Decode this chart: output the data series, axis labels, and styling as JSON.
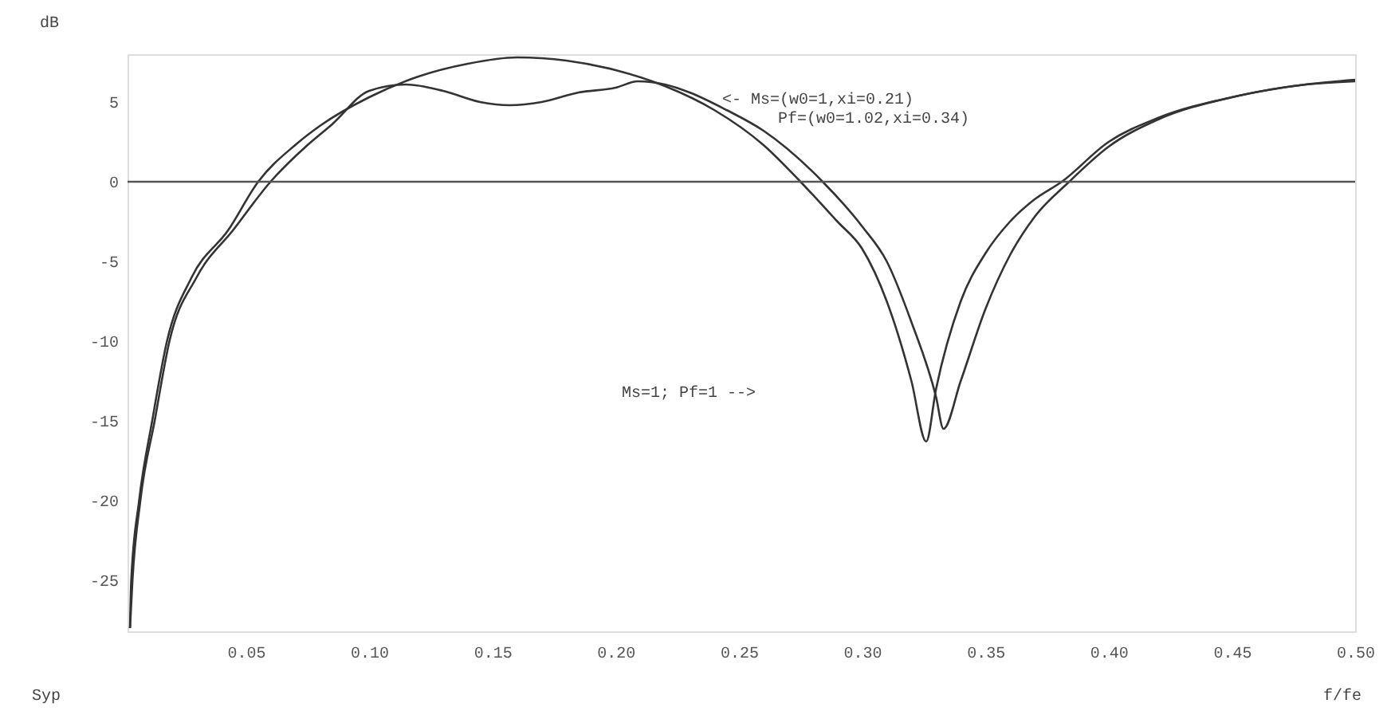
{
  "chart_data": {
    "type": "line",
    "xlabel": "f/fe",
    "ylabel": "dB",
    "xlim": [
      0.002,
      0.5
    ],
    "ylim": [
      -28.2,
      8
    ],
    "xticks": [
      0.05,
      {
        "value": 0.1,
        "label": "0.10"
      },
      0.15,
      {
        "value": 0.2,
        "label": "0.20"
      },
      0.25,
      {
        "value": 0.3,
        "label": "0.30"
      },
      0.35,
      {
        "value": 0.4,
        "label": "0.40"
      },
      0.45,
      {
        "value": 0.5,
        "label": "0.50"
      }
    ],
    "yticks": [
      5,
      0,
      -5,
      -10,
      -15,
      -20,
      -25
    ],
    "grid": false,
    "marker": "none",
    "line_style": "solid",
    "ref_lines": [
      {
        "axis": "y",
        "value": 0,
        "color": "#555555"
      }
    ],
    "annotations": [
      "<- Ms=(w0=1,xi=0.21)",
      "Pf=(w0=1.02,xi=0.34)",
      "Ms=1; Pf=1 -->",
      "Syp"
    ],
    "series": [
      {
        "color": "#333333",
        "x": [
          0.003,
          0.0035,
          0.0067,
          0.012,
          0.018,
          0.028,
          0.043,
          0.055,
          0.07,
          0.08,
          0.1,
          0.12,
          0.14,
          0.16,
          0.18,
          0.2,
          0.22,
          0.24,
          0.26,
          0.275,
          0.29,
          0.3,
          0.31,
          0.32,
          0.326,
          0.33,
          0.34,
          0.35,
          0.36,
          0.37,
          0.381,
          0.4,
          0.42,
          0.45,
          0.48,
          0.5
        ],
        "values": [
          -28,
          -25,
          -20,
          -15,
          -10,
          -6,
          -3,
          0,
          2.3,
          3.5,
          5.3,
          6.6,
          7.4,
          7.8,
          7.6,
          7.0,
          6.0,
          4.5,
          2.3,
          0,
          -2.5,
          -4.2,
          -7.5,
          -12.5,
          -16.3,
          -13,
          -7.5,
          -4.5,
          -2.5,
          -1.1,
          0,
          2.5,
          4.0,
          5.3,
          6.1,
          6.3
        ]
      },
      {
        "color": "#333333",
        "x": [
          0.003,
          0.004,
          0.0072,
          0.013,
          0.019,
          0.03,
          0.045,
          0.06,
          0.075,
          0.085,
          0.1,
          0.115,
          0.13,
          0.145,
          0.157,
          0.17,
          0.185,
          0.2,
          0.209,
          0.22,
          0.23,
          0.245,
          0.26,
          0.284,
          0.3,
          0.31,
          0.32,
          0.33,
          0.333,
          0.34,
          0.35,
          0.36,
          0.37,
          0.384,
          0.4,
          0.42,
          0.45,
          0.48,
          0.5
        ],
        "values": [
          -28,
          -25,
          -20,
          -15,
          -10,
          -6,
          -3,
          0,
          2.3,
          3.6,
          5.7,
          6.1,
          5.7,
          5.0,
          4.8,
          5.0,
          5.6,
          5.9,
          6.3,
          6.1,
          5.6,
          4.5,
          3.2,
          0,
          -2.8,
          -5,
          -8.8,
          -13.5,
          -15.5,
          -12.5,
          -8,
          -4.6,
          -2.2,
          0,
          2.2,
          3.9,
          5.3,
          6.1,
          6.4
        ]
      }
    ]
  }
}
